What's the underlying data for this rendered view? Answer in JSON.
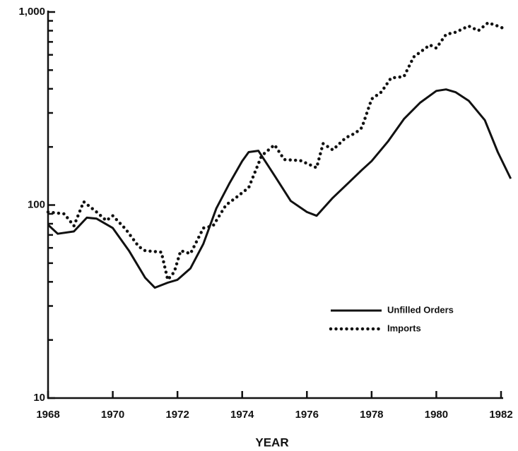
{
  "chart_data": {
    "type": "line",
    "x_label": "YEAR",
    "log_y": true,
    "xlim": [
      1968,
      1982
    ],
    "xticks": [
      1968,
      1970,
      1972,
      1974,
      1976,
      1978,
      1980,
      1982
    ],
    "ylim": [
      10,
      1000
    ],
    "yticks": [
      10,
      100,
      {
        "value": 1000,
        "label": "1,000"
      }
    ],
    "yminorticks": [
      20,
      30,
      40,
      50,
      60,
      70,
      80,
      90,
      200,
      300,
      400,
      500,
      600,
      700,
      800,
      900
    ],
    "legend": "lower right",
    "series": [
      {
        "name": "Unfilled Orders",
        "color": "#111111",
        "style": "solid",
        "x": [
          1968.0,
          1968.3,
          1968.8,
          1969.2,
          1969.5,
          1970.0,
          1970.5,
          1971.0,
          1971.3,
          1971.7,
          1972.0,
          1972.4,
          1972.8,
          1973.2,
          1973.6,
          1974.0,
          1974.2,
          1974.5,
          1975.0,
          1975.5,
          1976.0,
          1976.3,
          1976.8,
          1977.3,
          1977.7,
          1978.0,
          1978.5,
          1979.0,
          1979.5,
          1980.0,
          1980.3,
          1980.6,
          1981.0,
          1981.5,
          1981.9,
          1982.3
        ],
        "values": [
          79,
          71,
          73,
          86,
          85,
          76,
          58,
          42,
          37.3,
          39.6,
          41,
          47,
          63,
          96,
          129,
          169,
          188,
          191,
          142,
          105,
          92,
          88,
          109,
          131,
          152,
          169,
          213,
          279,
          339,
          390,
          397,
          384,
          347,
          275,
          188,
          137
        ]
      },
      {
        "name": "Imports",
        "color": "#111111",
        "style": "dotted",
        "x": [
          1968.0,
          1968.5,
          1968.8,
          1969.1,
          1969.5,
          1969.8,
          1970.0,
          1970.4,
          1970.8,
          1971.0,
          1971.5,
          1971.7,
          1971.9,
          1972.1,
          1972.4,
          1972.8,
          1973.1,
          1973.5,
          1973.8,
          1974.2,
          1974.6,
          1975.0,
          1975.3,
          1975.8,
          1976.3,
          1976.5,
          1976.8,
          1977.2,
          1977.5,
          1977.7,
          1978.0,
          1978.3,
          1978.6,
          1979.0,
          1979.3,
          1979.8,
          1980.0,
          1980.3,
          1980.6,
          1981.0,
          1981.3,
          1981.6,
          1981.9,
          1982.1
        ],
        "values": [
          92,
          90,
          78,
          104,
          92,
          83,
          88,
          75,
          61,
          58,
          57,
          41,
          45,
          58,
          56,
          76,
          78,
          100,
          109,
          123,
          180,
          205,
          172,
          170,
          156,
          208,
          193,
          223,
          236,
          252,
          354,
          385,
          455,
          463,
          585,
          675,
          650,
          765,
          786,
          846,
          800,
          880,
          846,
          820
        ]
      }
    ]
  }
}
